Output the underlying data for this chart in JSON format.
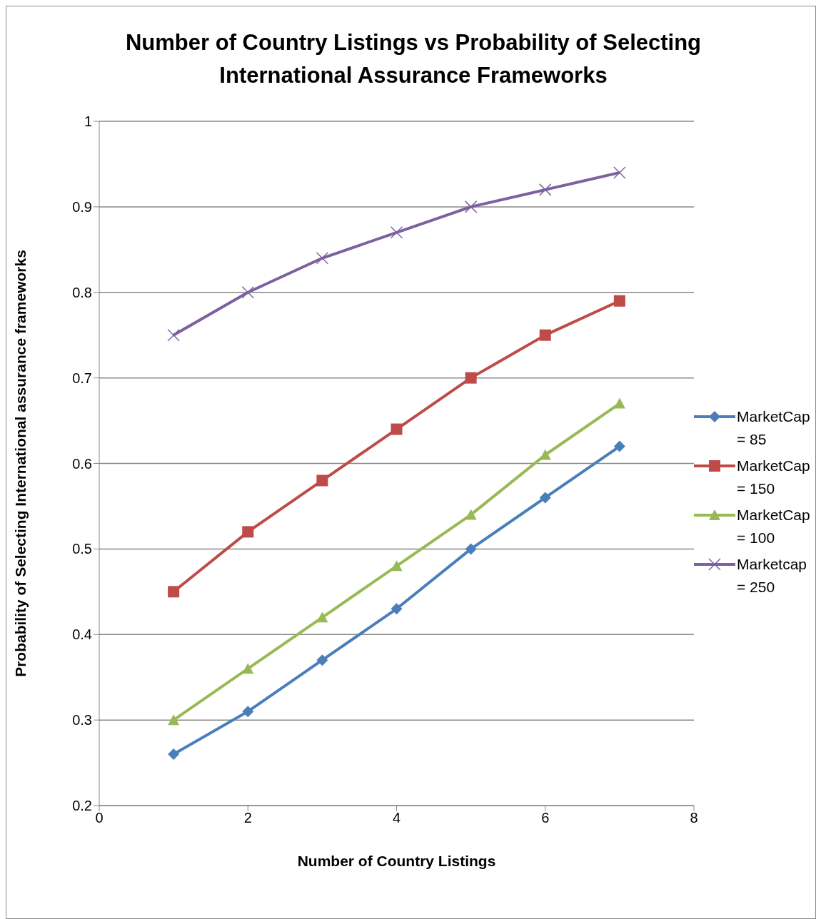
{
  "chart_data": {
    "type": "line",
    "title": "Number of Country Listings vs Probability of Selecting International Assurance Frameworks",
    "xlabel": "Number of Country Listings",
    "ylabel": "Probability of Selecting International assurance frameworks",
    "x": [
      1,
      2,
      3,
      4,
      5,
      6,
      7
    ],
    "series": [
      {
        "name": "MarketCap = 85",
        "color": "#4a7ebb",
        "marker": "diamond",
        "values": [
          0.26,
          0.31,
          0.37,
          0.43,
          0.5,
          0.56,
          0.62
        ]
      },
      {
        "name": "MarketCap = 150",
        "color": "#be4b48",
        "marker": "square",
        "values": [
          0.45,
          0.52,
          0.58,
          0.64,
          0.7,
          0.75,
          0.79
        ]
      },
      {
        "name": "MarketCap = 100",
        "color": "#98b954",
        "marker": "triangle",
        "values": [
          0.3,
          0.36,
          0.42,
          0.48,
          0.54,
          0.61,
          0.67
        ]
      },
      {
        "name": "Marketcap = 250",
        "color": "#7d60a0",
        "marker": "cross",
        "values": [
          0.75,
          0.8,
          0.84,
          0.87,
          0.9,
          0.92,
          0.94
        ]
      }
    ],
    "xlim": [
      0,
      8
    ],
    "xticks": [
      0,
      2,
      4,
      6,
      8
    ],
    "ylim": [
      0.2,
      1
    ],
    "yticks": [
      0.2,
      0.3,
      0.4,
      0.5,
      0.6,
      0.7,
      0.8,
      0.9,
      1
    ],
    "grid": "y",
    "legend": "right",
    "line_style": "solid"
  }
}
